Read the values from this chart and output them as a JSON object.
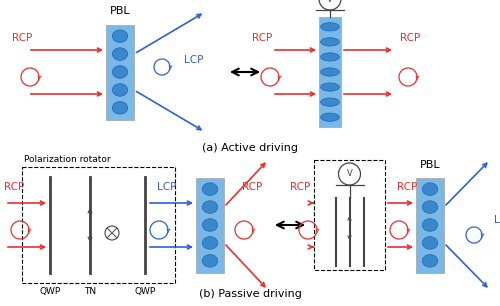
{
  "fig_width": 5.0,
  "fig_height": 3.06,
  "dpi": 100,
  "bg_color": "#ffffff",
  "red_color": "#e83030",
  "blue_color": "#3060d8",
  "pbl_fill": "#7ab8e8",
  "pbl_ellipse_fill": "#3a88cc",
  "gray_color": "#444444",
  "caption_a": "(a) Active driving",
  "caption_b": "(b) Passive driving",
  "label_PBL": "PBL",
  "label_RCP": "RCP",
  "label_LCP": "LCP",
  "label_pol_rot": "Polarization rotator",
  "label_QWP": "QWP",
  "label_TN": "TN"
}
